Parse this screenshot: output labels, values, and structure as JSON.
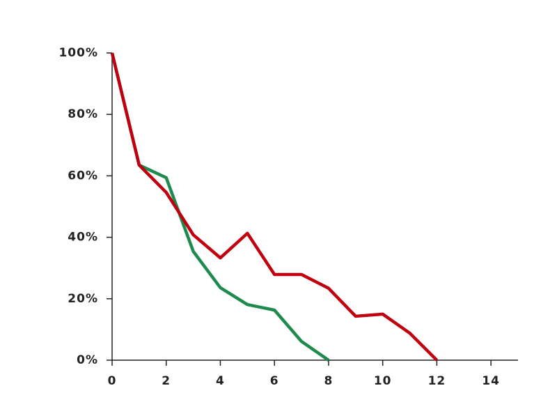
{
  "chart_data": {
    "type": "line",
    "x": [
      0,
      1,
      2,
      3,
      4,
      5,
      6,
      7,
      8,
      9,
      10,
      11,
      12
    ],
    "series": [
      {
        "color": "#1e8a4e",
        "values": [
          100,
          63.5,
          59.4,
          35.4,
          23.6,
          18.1,
          16.3,
          6.1,
          0,
          null,
          null,
          null,
          null
        ]
      },
      {
        "color": "#c0000f",
        "values": [
          100,
          63.5,
          54.6,
          40.8,
          33.3,
          41.3,
          27.9,
          27.9,
          23.4,
          14.3,
          15.0,
          8.8,
          0
        ]
      }
    ],
    "xlim": [
      0,
      15
    ],
    "xticks": [
      0,
      2,
      4,
      6,
      8,
      10,
      12,
      14
    ],
    "ylim": [
      0,
      100
    ],
    "yticks": [
      {
        "value": 0,
        "label": "0%"
      },
      {
        "value": 20,
        "label": "20%"
      },
      {
        "value": 40,
        "label": "40%"
      },
      {
        "value": 60,
        "label": "60%"
      },
      {
        "value": 80,
        "label": "80%"
      },
      {
        "value": 100,
        "label": "100%"
      }
    ]
  }
}
